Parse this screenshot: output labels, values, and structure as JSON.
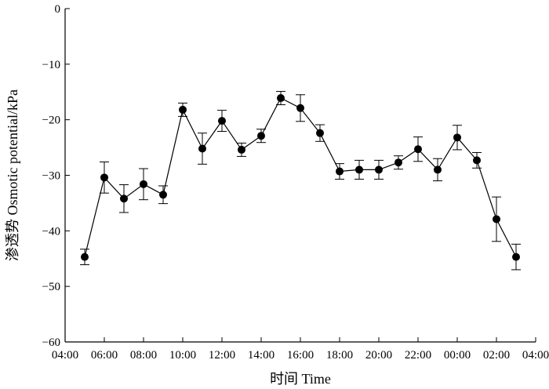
{
  "chart_data": {
    "type": "line",
    "xlabel": "时间  Time",
    "ylabel": "渗透势 Osmotic potential/kPa",
    "ylim": [
      -60,
      0
    ],
    "yticks": [
      0,
      -10,
      -20,
      -30,
      -40,
      -50,
      -60
    ],
    "ytick_labels": [
      "0",
      "−10",
      "−20",
      "−30",
      "−40",
      "−50",
      "−60"
    ],
    "xticks": [
      "04:00",
      "06:00",
      "08:00",
      "10:00",
      "12:00",
      "14:00",
      "16:00",
      "18:00",
      "20:00",
      "22:00",
      "00:00",
      "02:00",
      "04:00"
    ],
    "x_hour_range": [
      4,
      28
    ],
    "grid": false,
    "series": [
      {
        "x_hours": [
          5,
          6,
          7,
          8,
          9,
          10,
          11,
          12,
          13,
          14,
          15,
          16,
          17,
          18,
          19,
          20,
          21,
          22,
          23,
          24,
          25,
          26,
          27
        ],
        "values": [
          -44.7,
          -30.4,
          -34.2,
          -31.6,
          -33.5,
          -18.2,
          -25.2,
          -20.2,
          -25.4,
          -22.9,
          -16.1,
          -17.9,
          -22.4,
          -29.3,
          -29.0,
          -29.0,
          -27.7,
          -25.3,
          -29.0,
          -23.2,
          -27.3,
          -37.9,
          -44.7
        ],
        "errors": [
          1.4,
          2.8,
          2.5,
          2.8,
          1.6,
          1.2,
          2.8,
          1.9,
          1.2,
          1.2,
          1.2,
          2.4,
          1.5,
          1.4,
          1.7,
          1.7,
          1.2,
          2.2,
          2.0,
          2.2,
          1.4,
          4.0,
          2.3
        ]
      }
    ]
  }
}
